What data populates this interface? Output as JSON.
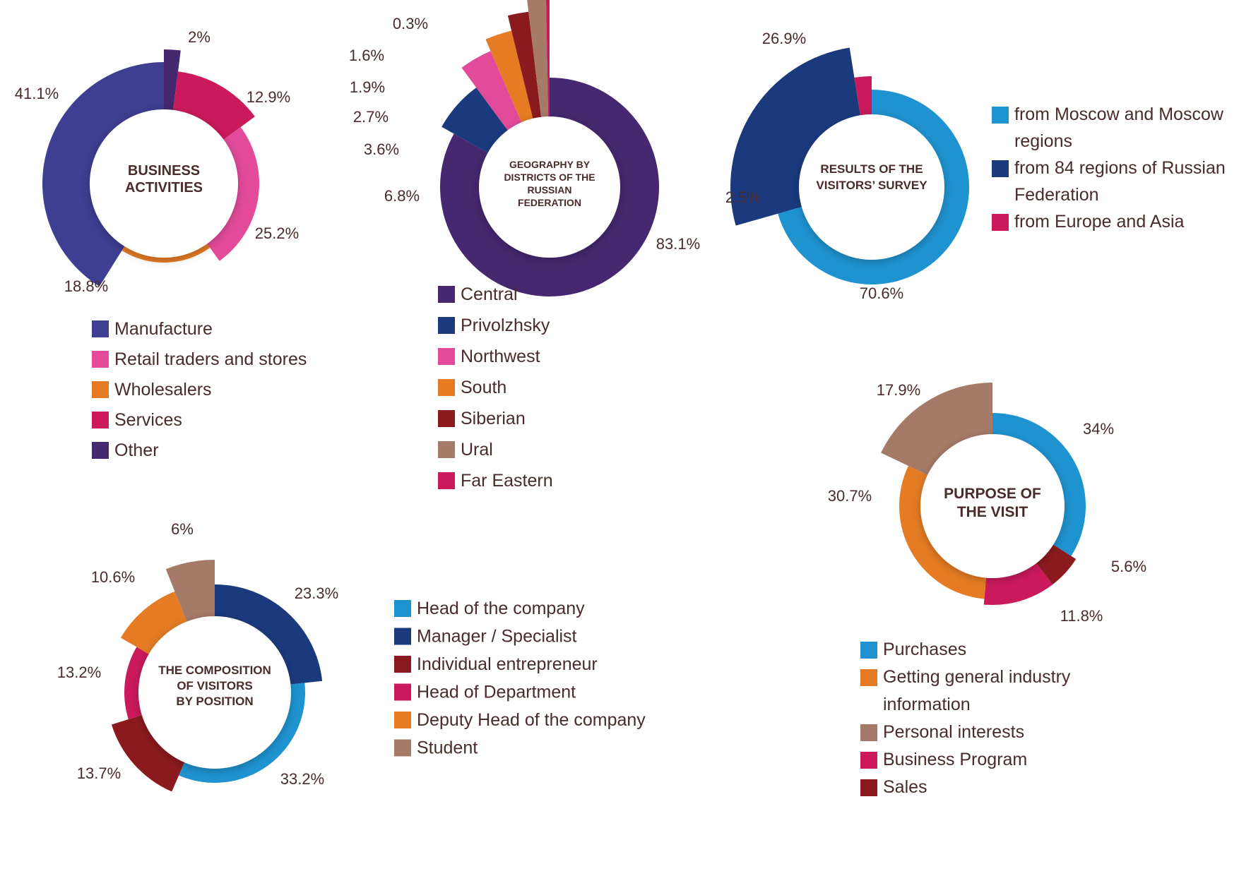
{
  "chart_data": [
    {
      "type": "pie",
      "id": "business",
      "title": "BUSINESS ACTIVITIES",
      "categories": [
        "Other",
        "Services",
        "Retail traders and stores",
        "Wholesalers",
        "Manufacture"
      ],
      "values": [
        2,
        12.9,
        25.2,
        18.8,
        41.1
      ],
      "labels": [
        "2%",
        "12.9%",
        "25.2%",
        "18.8%",
        "41.1%"
      ],
      "colors": [
        "#45286f",
        "#cb1a5c",
        "#e34b9a",
        "#e57c24",
        "#3e3e92"
      ],
      "legend": [
        "Manufacture",
        "Retail traders and stores",
        "Wholesalers",
        "Services",
        "Other"
      ],
      "legend_colors": [
        "#3e3e92",
        "#e34b9a",
        "#e57c24",
        "#cb1a5c",
        "#45286f"
      ]
    },
    {
      "type": "pie",
      "id": "geography",
      "title": "GEOGRAPHY BY DISTRICTS OF THE RUSSIAN FEDERATION",
      "categories": [
        "Central",
        "Privolzhsky",
        "Northwest",
        "South",
        "Siberian",
        "Ural",
        "Far Eastern"
      ],
      "values": [
        83.1,
        6.8,
        3.6,
        2.7,
        1.9,
        1.6,
        0.3
      ],
      "labels": [
        "83.1%",
        "6.8%",
        "3.6%",
        "2.7%",
        "1.9%",
        "1.6%",
        "0.3%"
      ],
      "colors": [
        "#45286f",
        "#1b3a7e",
        "#e34b9a",
        "#e57c24",
        "#8b1a1f",
        "#a57a68",
        "#cb1a5c"
      ],
      "legend": [
        "Central",
        "Privolzhsky",
        "Northwest",
        "South",
        "Siberian",
        "Ural",
        "Far Eastern"
      ],
      "legend_colors": [
        "#45286f",
        "#1b3a7e",
        "#e34b9a",
        "#e57c24",
        "#8b1a1f",
        "#a57a68",
        "#cb1a5c"
      ]
    },
    {
      "type": "pie",
      "id": "survey",
      "title": "RESULTS OF THE VISITORS’ SURVEY",
      "categories": [
        "from Moscow and Moscow regions",
        "from 84 regions of Russian Federation",
        "from Europe and Asia"
      ],
      "values": [
        70.6,
        26.9,
        2.5
      ],
      "labels": [
        "70.6%",
        "26.9%",
        "2.5%"
      ],
      "colors": [
        "#1f93d0",
        "#1b3a7e",
        "#cb1a5c"
      ],
      "legend": [
        "from Moscow and Moscow regions",
        "from 84 regions of Russian Federation",
        "from Europe and Asia"
      ],
      "legend_colors": [
        "#1f93d0",
        "#1b3a7e",
        "#cb1a5c"
      ]
    },
    {
      "type": "pie",
      "id": "purpose",
      "title": "PURPOSE OF THE VISIT",
      "categories": [
        "Purchases",
        "Sales",
        "Business Program",
        "Getting general industry information",
        "Personal interests"
      ],
      "values": [
        34,
        5.6,
        11.8,
        30.7,
        17.9
      ],
      "labels": [
        "34%",
        "5.6%",
        "11.8%",
        "30.7%",
        "17.9%"
      ],
      "colors": [
        "#1f93d0",
        "#8b1a1f",
        "#cb1a5c",
        "#e57c24",
        "#a57a68"
      ],
      "legend": [
        "Purchases",
        "Getting general industry information",
        "Personal interests",
        "Business Program",
        "Sales"
      ],
      "legend_colors": [
        "#1f93d0",
        "#e57c24",
        "#a57a68",
        "#cb1a5c",
        "#8b1a1f"
      ]
    },
    {
      "type": "pie",
      "id": "position",
      "title": "THE COMPOSITION OF VISITORS BY POSITION",
      "categories": [
        "Manager / Specialist",
        "Head of the company",
        "Individual entrepreneur",
        "Head of Department",
        "Deputy Head of the company",
        "Student"
      ],
      "values": [
        23.3,
        33.2,
        13.7,
        13.2,
        10.6,
        6
      ],
      "labels": [
        "23.3%",
        "33.2%",
        "13.7%",
        "13.2%",
        "10.6%",
        "6%"
      ],
      "colors": [
        "#1b3a7e",
        "#1f93d0",
        "#8b1a1f",
        "#cb1a5c",
        "#e57c24",
        "#a57a68"
      ],
      "legend": [
        "Head of the company",
        "Manager / Specialist",
        "Individual entrepreneur",
        "Head of Department",
        "Deputy Head of the company",
        "Student"
      ],
      "legend_colors": [
        "#1f93d0",
        "#1b3a7e",
        "#8b1a1f",
        "#cb1a5c",
        "#e57c24",
        "#a57a68"
      ]
    }
  ]
}
